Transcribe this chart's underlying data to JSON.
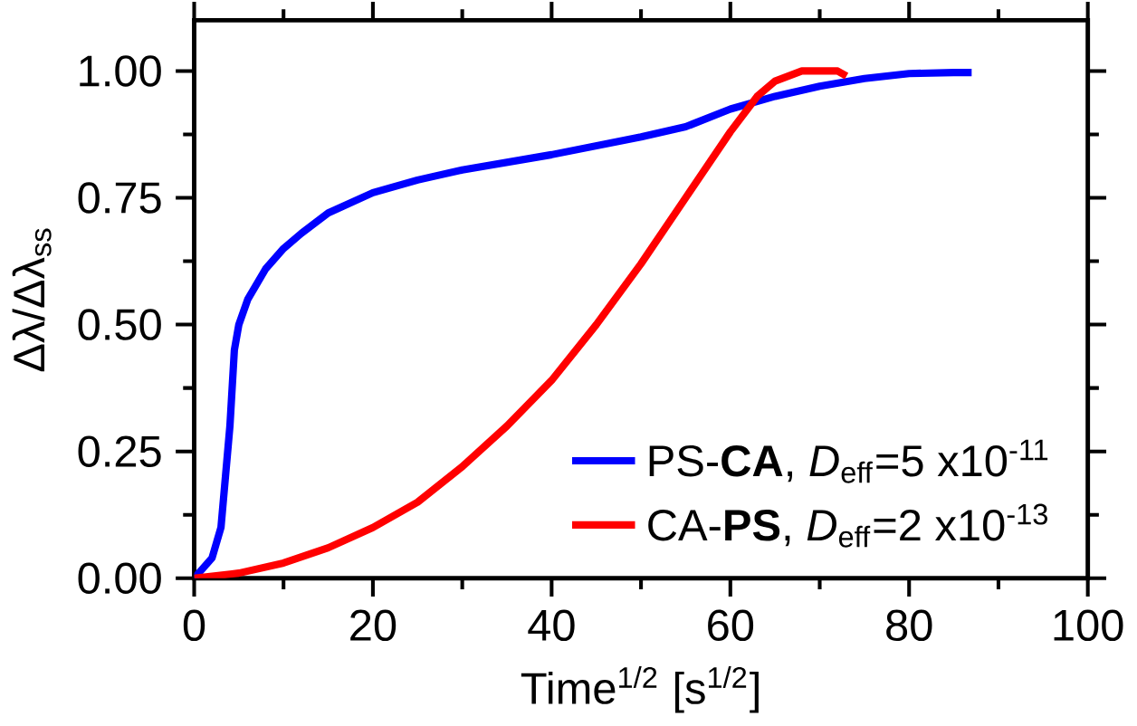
{
  "chart_data": {
    "type": "line",
    "xlabel": "Time$^{1/2}$ [s$^{1/2}$]",
    "ylabel": "Δλ/Δλ$_{ss}$",
    "xlim": [
      0,
      100
    ],
    "xticks": [
      0,
      20,
      40,
      60,
      80,
      100
    ],
    "ylim": [
      0,
      1.1
    ],
    "yticks": [
      {
        "value": 0,
        "label": "0.00"
      },
      {
        "value": 0.25,
        "label": "0.25"
      },
      {
        "value": 0.5,
        "label": "0.50"
      },
      {
        "value": 0.75,
        "label": "0.75"
      },
      {
        "value": 1,
        "label": "1.00"
      }
    ],
    "legend": "bottom right",
    "grid": false,
    "marker": "none",
    "line_style": "solid",
    "series": [
      {
        "name": "PS-**CA**, *D*$_{eff}$=5 x10$^{-11}$",
        "color": "#0000ff",
        "x": [
          0,
          2,
          3,
          4,
          4.5,
          5,
          6,
          8,
          10,
          12,
          15,
          20,
          25,
          30,
          40,
          50,
          55,
          60,
          65,
          70,
          75,
          80,
          85,
          87
        ],
        "values": [
          0,
          0.04,
          0.1,
          0.3,
          0.45,
          0.5,
          0.55,
          0.61,
          0.65,
          0.68,
          0.72,
          0.76,
          0.785,
          0.805,
          0.835,
          0.87,
          0.89,
          0.925,
          0.95,
          0.97,
          0.985,
          0.995,
          0.997,
          0.997
        ]
      },
      {
        "name": "CA-**PS**, *D*$_{eff}$=2 x10$^{-13}$",
        "color": "#ff0000",
        "x": [
          0,
          5,
          10,
          15,
          20,
          25,
          30,
          35,
          40,
          45,
          50,
          55,
          60,
          63,
          65,
          68,
          72,
          73
        ],
        "values": [
          0,
          0.01,
          0.03,
          0.06,
          0.1,
          0.15,
          0.22,
          0.3,
          0.39,
          0.5,
          0.62,
          0.75,
          0.88,
          0.95,
          0.98,
          1.0,
          1.0,
          0.99
        ]
      }
    ]
  }
}
